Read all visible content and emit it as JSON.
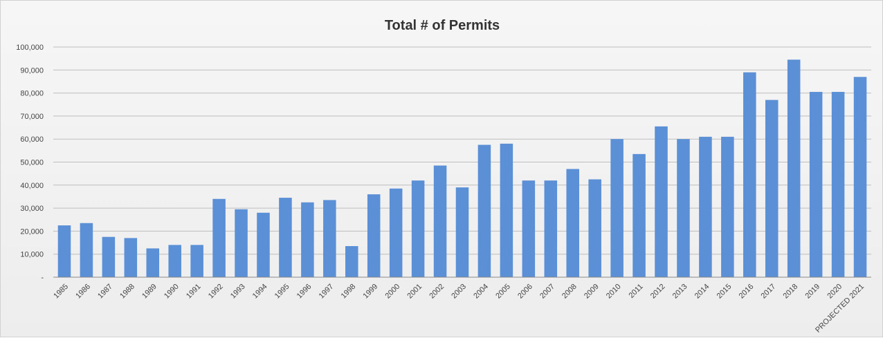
{
  "chart_data": {
    "type": "bar",
    "title": "Total # of Permits",
    "xlabel": "",
    "ylabel": "",
    "ylim": [
      0,
      100000
    ],
    "yticks": [
      {
        "value": 0,
        "label": "-"
      },
      {
        "value": 10000,
        "label": "10,000"
      },
      {
        "value": 20000,
        "label": "20,000"
      },
      {
        "value": 30000,
        "label": "30,000"
      },
      {
        "value": 40000,
        "label": "40,000"
      },
      {
        "value": 50000,
        "label": "50,000"
      },
      {
        "value": 60000,
        "label": "60,000"
      },
      {
        "value": 70000,
        "label": "70,000"
      },
      {
        "value": 80000,
        "label": "80,000"
      },
      {
        "value": 90000,
        "label": "90,000"
      },
      {
        "value": 100000,
        "label": "100,000"
      }
    ],
    "grid": true,
    "bar_color": "#5b8fd6",
    "categories": [
      "1985",
      "1986",
      "1987",
      "1988",
      "1989",
      "1990",
      "1991",
      "1992",
      "1993",
      "1994",
      "1995",
      "1996",
      "1997",
      "1998",
      "1999",
      "2000",
      "2001",
      "2002",
      "2003",
      "2004",
      "2005",
      "2006",
      "2007",
      "2008",
      "2009",
      "2010",
      "2011",
      "2012",
      "2013",
      "2014",
      "2015",
      "2016",
      "2017",
      "2018",
      "2019",
      "2020",
      "PROJECTED 2021"
    ],
    "values": [
      22500,
      23500,
      17500,
      17000,
      12500,
      14000,
      14000,
      34000,
      29500,
      28000,
      34500,
      32500,
      33500,
      13500,
      36000,
      38500,
      42000,
      48500,
      39000,
      57500,
      58000,
      42000,
      42000,
      47000,
      42500,
      60000,
      53500,
      65500,
      60000,
      61000,
      61000,
      89000,
      77000,
      94500,
      80500,
      80500,
      87000
    ]
  }
}
